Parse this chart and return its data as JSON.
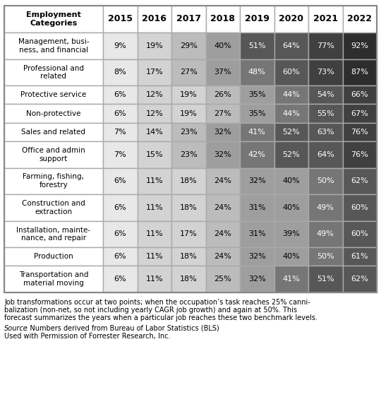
{
  "col_headers": [
    "Employment\nCategories",
    "2015",
    "2016",
    "2017",
    "2018",
    "2019",
    "2020",
    "2021",
    "2022"
  ],
  "rows": [
    {
      "label": "Management, busi-\nness, and financial",
      "values": [
        "9%",
        "19%",
        "29%",
        "40%",
        "51%",
        "64%",
        "77%",
        "92%"
      ],
      "nums": [
        9,
        19,
        29,
        40,
        51,
        64,
        77,
        92
      ]
    },
    {
      "label": "Professional and\nrelated",
      "values": [
        "8%",
        "17%",
        "27%",
        "37%",
        "48%",
        "60%",
        "73%",
        "87%"
      ],
      "nums": [
        8,
        17,
        27,
        37,
        48,
        60,
        73,
        87
      ]
    },
    {
      "label": "Protective service",
      "values": [
        "6%",
        "12%",
        "19%",
        "26%",
        "35%",
        "44%",
        "54%",
        "66%"
      ],
      "nums": [
        6,
        12,
        19,
        26,
        35,
        44,
        54,
        66
      ]
    },
    {
      "label": "Non-protective",
      "values": [
        "6%",
        "12%",
        "19%",
        "27%",
        "35%",
        "44%",
        "55%",
        "67%"
      ],
      "nums": [
        6,
        12,
        19,
        27,
        35,
        44,
        55,
        67
      ]
    },
    {
      "label": "Sales and related",
      "values": [
        "7%",
        "14%",
        "23%",
        "32%",
        "41%",
        "52%",
        "63%",
        "76%"
      ],
      "nums": [
        7,
        14,
        23,
        32,
        41,
        52,
        63,
        76
      ]
    },
    {
      "label": "Office and admin\nsupport",
      "values": [
        "7%",
        "15%",
        "23%",
        "32%",
        "42%",
        "52%",
        "64%",
        "76%"
      ],
      "nums": [
        7,
        15,
        23,
        32,
        42,
        52,
        64,
        76
      ]
    },
    {
      "label": "Farming, fishing,\nforestry",
      "values": [
        "6%",
        "11%",
        "18%",
        "24%",
        "32%",
        "40%",
        "50%",
        "62%"
      ],
      "nums": [
        6,
        11,
        18,
        24,
        32,
        40,
        50,
        62
      ]
    },
    {
      "label": "Construction and\nextraction",
      "values": [
        "6%",
        "11%",
        "18%",
        "24%",
        "31%",
        "40%",
        "49%",
        "60%"
      ],
      "nums": [
        6,
        11,
        18,
        24,
        31,
        40,
        49,
        60
      ]
    },
    {
      "label": "Installation, mainte-\nnance, and repair",
      "values": [
        "6%",
        "11%",
        "17%",
        "24%",
        "31%",
        "39%",
        "49%",
        "60%"
      ],
      "nums": [
        6,
        11,
        17,
        24,
        31,
        39,
        49,
        60
      ]
    },
    {
      "label": "Production",
      "values": [
        "6%",
        "11%",
        "18%",
        "24%",
        "32%",
        "40%",
        "50%",
        "61%"
      ],
      "nums": [
        6,
        11,
        18,
        24,
        32,
        40,
        50,
        61
      ]
    },
    {
      "label": "Transportation and\nmaterial moving",
      "values": [
        "6%",
        "11%",
        "18%",
        "25%",
        "32%",
        "41%",
        "51%",
        "62%"
      ],
      "nums": [
        6,
        11,
        18,
        25,
        32,
        41,
        51,
        62
      ]
    }
  ],
  "footer_line1": "Job transformations occur at two points; when the occupation’s task reaches 25% canni-",
  "footer_line2": "balization (non-net, so not including yearly CAGR job growth) and again at 50%. This",
  "footer_line3": "forecast summarizes the years when a particular job reaches these two benchmark levels.",
  "source_line1_italic": "Source",
  "source_line1_rest": ": Numbers derived from Bureau of Labor Statistics (BLS)",
  "source_line2": "Used with Permission of Forrester Research, Inc.",
  "bg_color": "#ffffff",
  "border_color": "#999999",
  "grid_color": "#cccccc",
  "header_bg": "#ffffff",
  "cell_bg_white": "#ffffff",
  "label_col_bg": "#ffffff"
}
